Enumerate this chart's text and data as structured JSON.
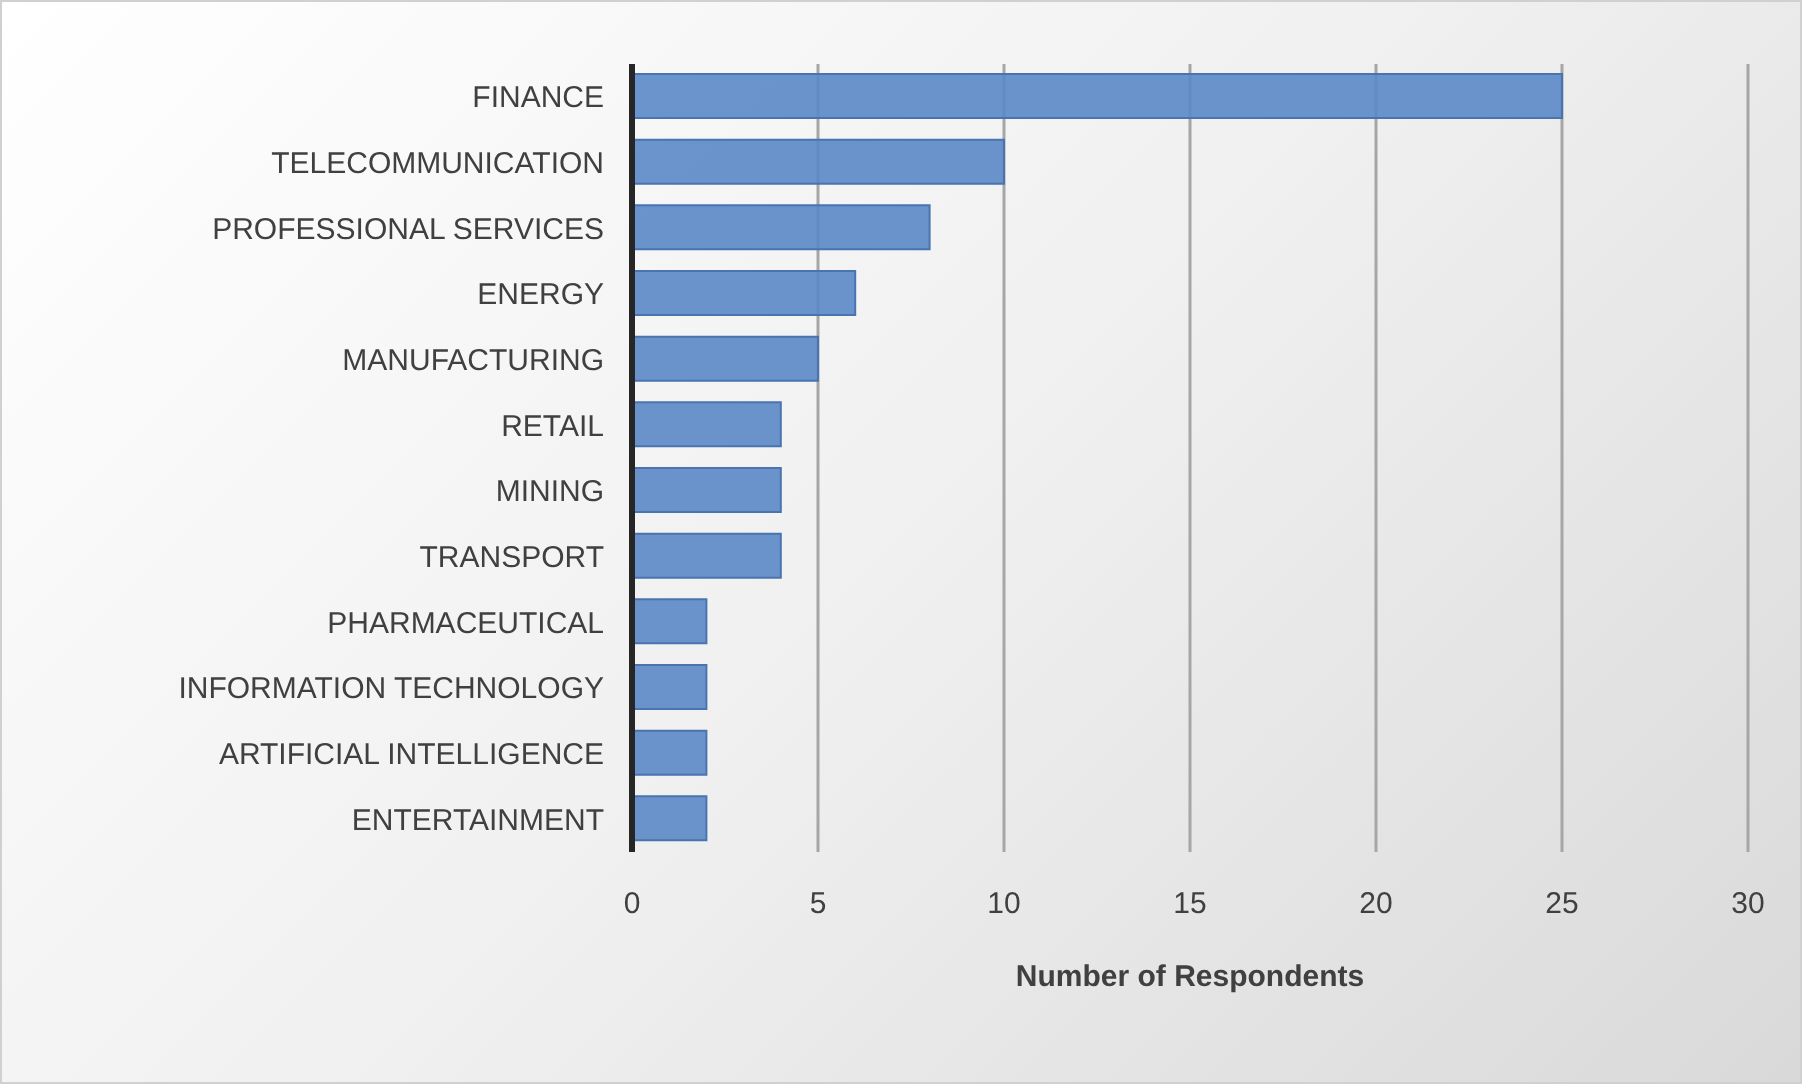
{
  "chart_data": {
    "type": "bar",
    "orientation": "horizontal",
    "xlabel": "Number of Respondents",
    "categories": [
      "FINANCE",
      "TELECOMMUNICATION",
      "PROFESSIONAL SERVICES",
      "ENERGY",
      "MANUFACTURING",
      "RETAIL",
      "MINING",
      "TRANSPORT",
      "PHARMACEUTICAL",
      "INFORMATION TECHNOLOGY",
      "ARTIFICIAL INTELLIGENCE",
      "ENTERTAINMENT"
    ],
    "values": [
      25,
      10,
      8,
      6,
      5,
      4,
      4,
      4,
      2,
      2,
      2,
      2
    ],
    "color": "#5b87c6",
    "xlim": [
      0,
      30
    ],
    "xticks": [
      0,
      5,
      10,
      15,
      20,
      25,
      30
    ],
    "grid": "x"
  }
}
